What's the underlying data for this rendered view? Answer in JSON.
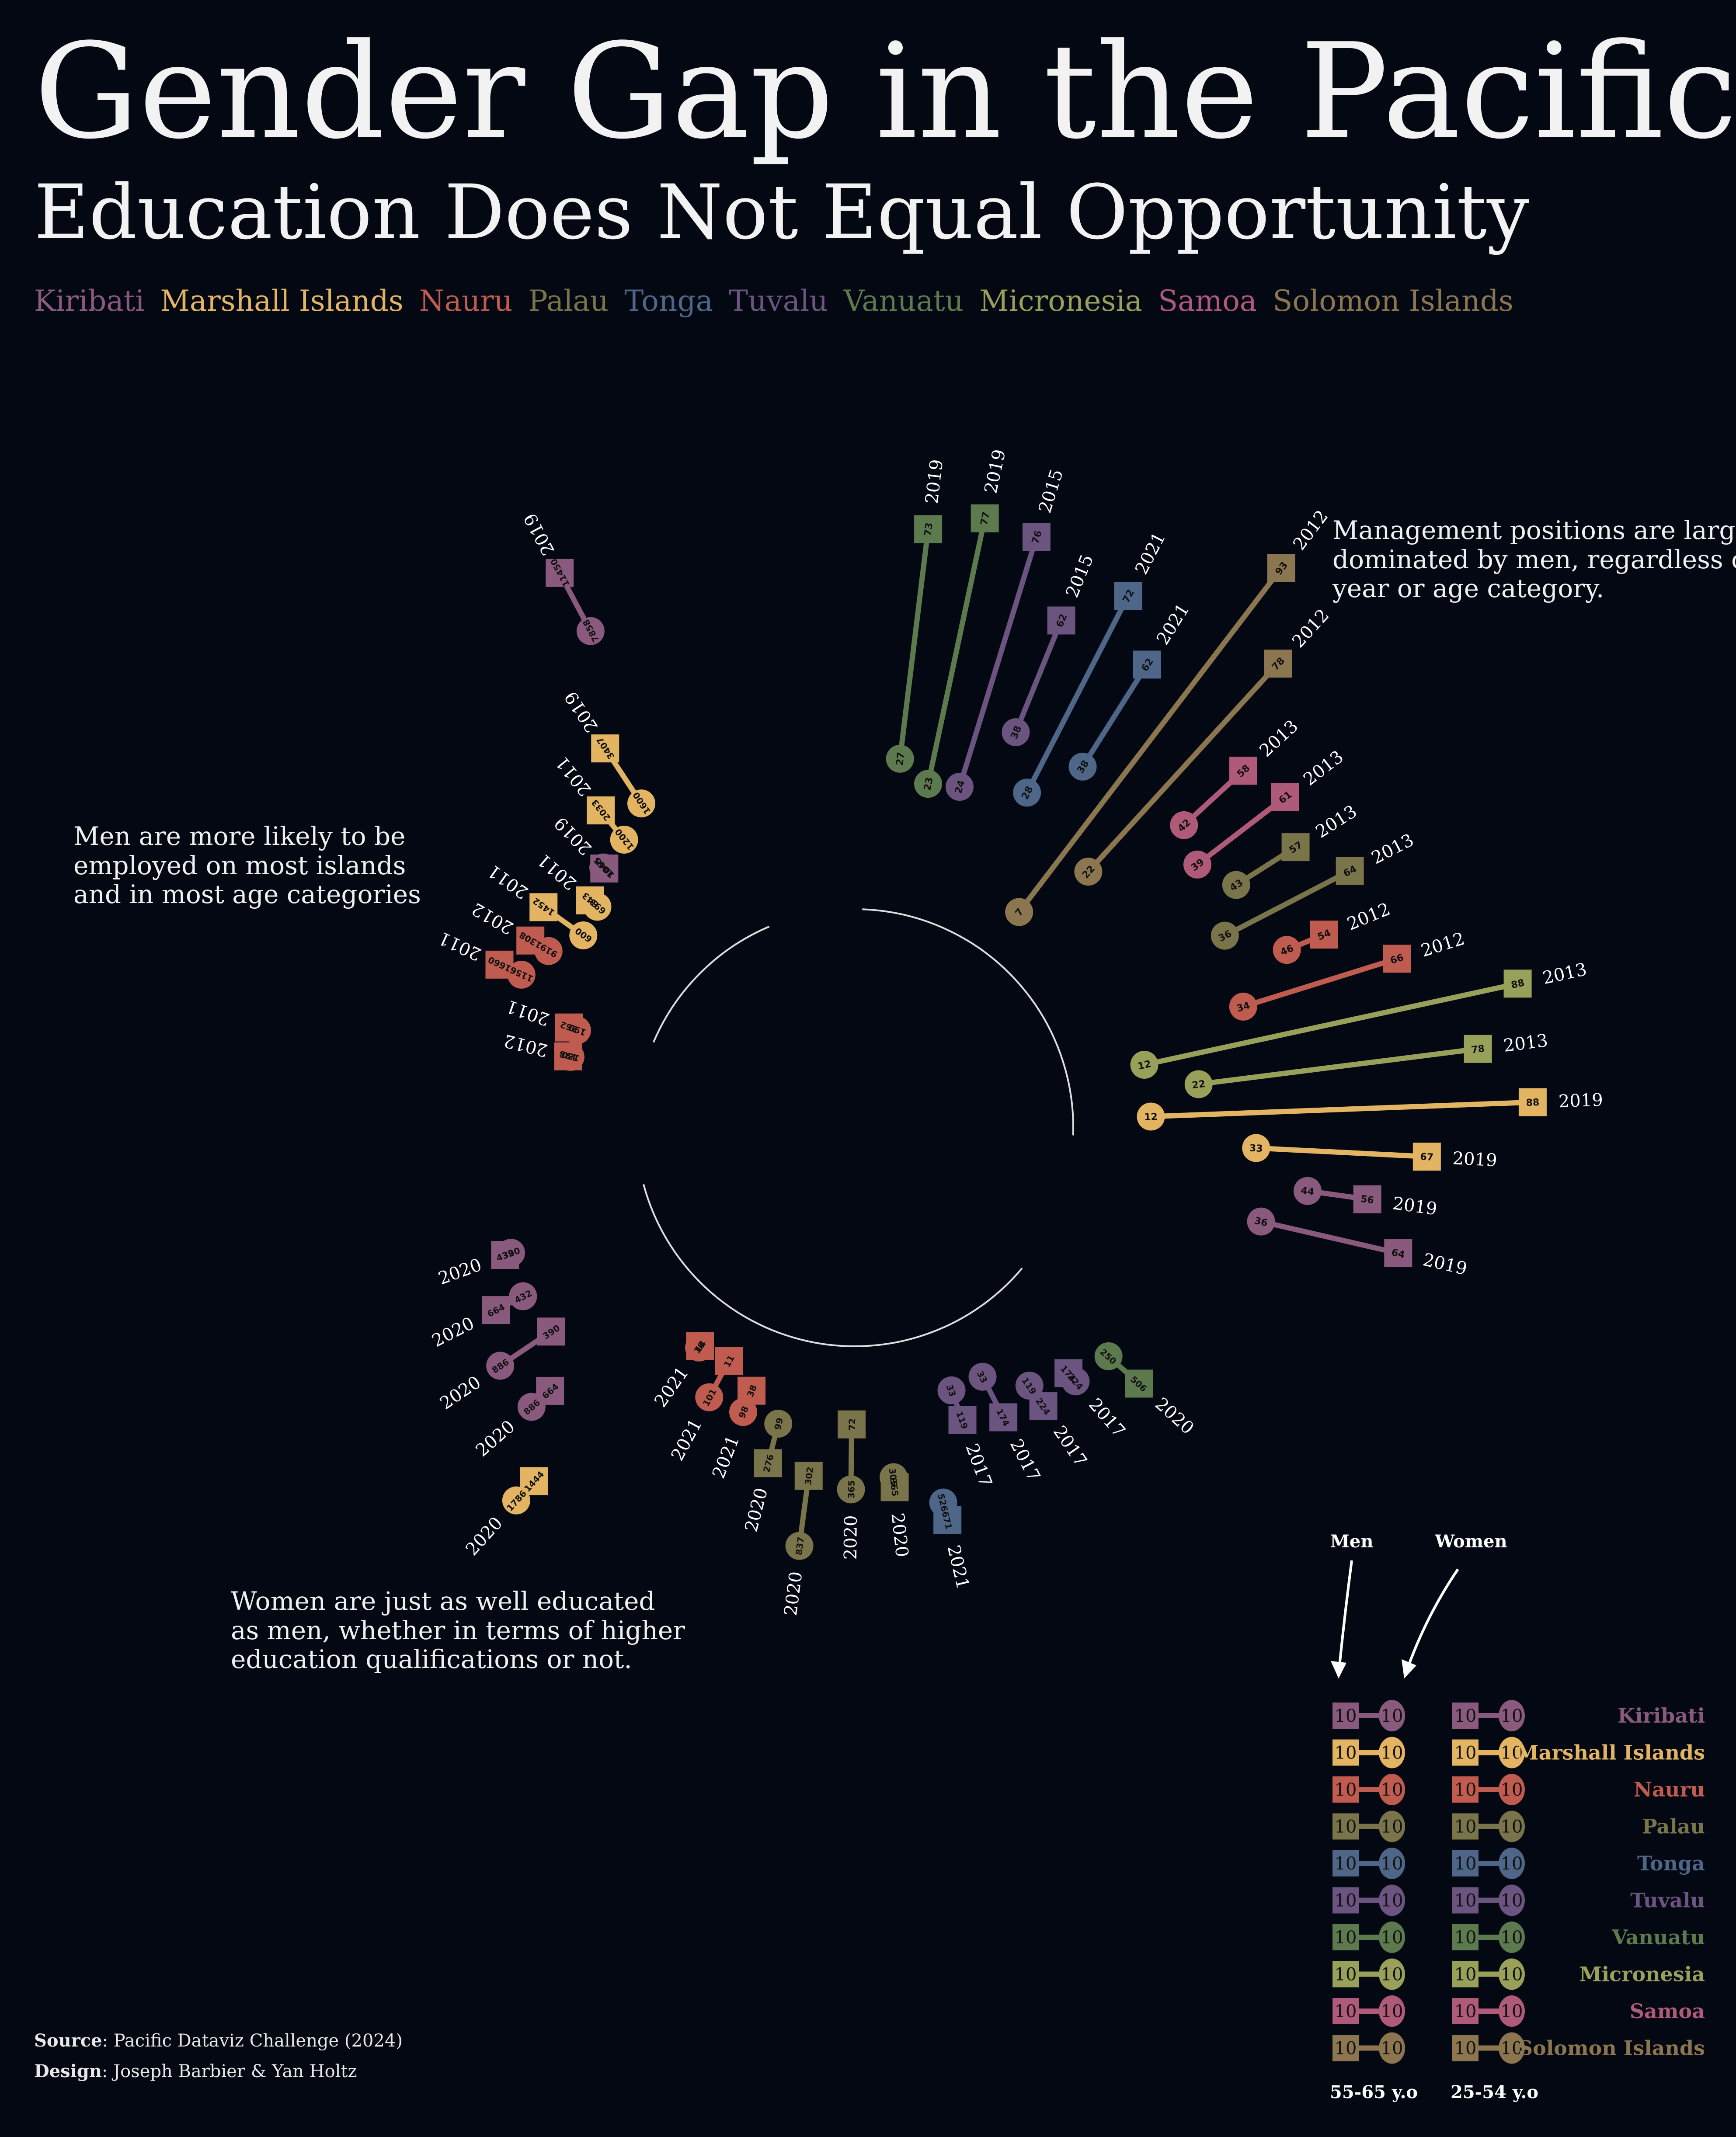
{
  "header": {
    "title": "Gender Gap in the Pacific",
    "subtitle": "Education Does Not Equal Opportunity"
  },
  "colors": {
    "Kiribati": "#8a5a7e",
    "Marshall Islands": "#e3b562",
    "Nauru": "#bf5b4f",
    "Palau": "#7a744b",
    "Tonga": "#4e6687",
    "Tuvalu": "#6b547f",
    "Vanuatu": "#5d7a4f",
    "Micronesia": "#99a05a",
    "Samoa": "#b05a7a",
    "Solomon Islands": "#8c7650"
  },
  "legend": [
    "Kiribati",
    "Marshall Islands",
    "Nauru",
    "Palau",
    "Tonga",
    "Tuvalu",
    "Vanuatu",
    "Micronesia",
    "Samoa",
    "Solomon Islands"
  ],
  "notes": {
    "management": [
      "Management positions are largely",
      "dominated by men, regardless of",
      "year or age category."
    ],
    "employment": [
      "Men are more likely to be",
      "employed on most islands",
      "and in most age categories"
    ],
    "education": [
      "Women are just as well educated",
      "as men, whether in terms of higher",
      "education qualifications or not."
    ]
  },
  "credits": {
    "source_label": "Source",
    "source": ": Pacific Dataviz Challenge (2024)",
    "design_label": "Design",
    "design": ": Joseph Barbier & Yan Holtz"
  },
  "key": {
    "men": "Men",
    "women": "Women",
    "value": "10",
    "col1": "55-65 y.o",
    "col2": "25-54 y.o"
  },
  "chart_data": [
    {
      "type": "dumbbell-radial",
      "section": "management",
      "marker_men": "square",
      "marker_women": "circle",
      "points": [
        {
          "country": "Vanuatu",
          "year": "2019",
          "men": 73,
          "women": 27
        },
        {
          "country": "Vanuatu",
          "year": "2019",
          "men": 77,
          "women": 23
        },
        {
          "country": "Tuvalu",
          "year": "2015",
          "men": 76,
          "women": 24
        },
        {
          "country": "Tuvalu",
          "year": "2015",
          "men": 62,
          "women": 38
        },
        {
          "country": "Tonga",
          "year": "2021",
          "men": 72,
          "women": 28
        },
        {
          "country": "Tonga",
          "year": "2021",
          "men": 62,
          "women": 38
        },
        {
          "country": "Solomon Islands",
          "year": "2012",
          "men": 93,
          "women": 7
        },
        {
          "country": "Solomon Islands",
          "year": "2012",
          "men": 78,
          "women": 22
        },
        {
          "country": "Samoa",
          "year": "2013",
          "men": 58,
          "women": 42
        },
        {
          "country": "Samoa",
          "year": "2013",
          "men": 61,
          "women": 39
        },
        {
          "country": "Palau",
          "year": "2013",
          "men": 57,
          "women": 43
        },
        {
          "country": "Palau",
          "year": "2013",
          "men": 64,
          "women": 36
        },
        {
          "country": "Nauru",
          "year": "2012",
          "men": 54,
          "women": 46
        },
        {
          "country": "Nauru",
          "year": "2012",
          "men": 66,
          "women": 34
        },
        {
          "country": "Micronesia",
          "year": "2013",
          "men": 88,
          "women": 12
        },
        {
          "country": "Micronesia",
          "year": "2013",
          "men": 78,
          "women": 22
        },
        {
          "country": "Marshall Islands",
          "year": "2019",
          "men": 88,
          "women": 12
        },
        {
          "country": "Marshall Islands",
          "year": "2019",
          "men": 67,
          "women": 33
        },
        {
          "country": "Kiribati",
          "year": "2019",
          "men": 56,
          "women": 44
        },
        {
          "country": "Kiribati",
          "year": "2019",
          "men": 64,
          "women": 36
        }
      ]
    },
    {
      "type": "dumbbell-radial",
      "section": "employment",
      "points": [
        {
          "country": "Kiribati",
          "year": "2019",
          "men": 11450,
          "women": 7858
        },
        {
          "country": "Marshall Islands",
          "year": "2019",
          "men": 3407,
          "women": 1600
        },
        {
          "country": "Marshall Islands",
          "year": "2011",
          "men": 2033,
          "women": 1200
        },
        {
          "country": "Kiribati",
          "year": "2019",
          "men": 1040,
          "women": 1065
        },
        {
          "country": "Marshall Islands",
          "year": "2011",
          "men": 843,
          "women": 693
        },
        {
          "country": "Marshall Islands",
          "year": "2011",
          "men": 1452,
          "women": 600
        },
        {
          "country": "Nauru",
          "year": "2012",
          "men": 1308,
          "women": 919
        },
        {
          "country": "Nauru",
          "year": "2011",
          "men": 1660,
          "women": 1156
        },
        {
          "country": "Nauru",
          "year": "2011",
          "men": 262,
          "women": 190
        },
        {
          "country": "Nauru",
          "year": "2012",
          "men": 198,
          "women": 180
        }
      ]
    },
    {
      "type": "dumbbell-radial",
      "section": "education",
      "points": [
        {
          "country": "Kiribati",
          "year": "2020",
          "men": 432,
          "women": 390
        },
        {
          "country": "Kiribati",
          "year": "2020",
          "men": 664,
          "women": 432
        },
        {
          "country": "Kiribati",
          "year": "2020",
          "men": 390,
          "women": 886
        },
        {
          "country": "Kiribati",
          "year": "2020",
          "men": 664,
          "women": 886
        },
        {
          "country": "Marshall Islands",
          "year": "2020",
          "men": 1444,
          "women": 1786
        },
        {
          "country": "Nauru",
          "year": "2021",
          "men": 14,
          "women": 16
        },
        {
          "country": "Nauru",
          "year": "2021",
          "men": 11,
          "women": 101
        },
        {
          "country": "Nauru",
          "year": "2021",
          "men": 38,
          "women": 98
        },
        {
          "country": "Palau",
          "year": "2020",
          "men": 276,
          "women": 99
        },
        {
          "country": "Palau",
          "year": "2020",
          "men": 302,
          "women": 837
        },
        {
          "country": "Palau",
          "year": "2020",
          "men": 72,
          "women": 365
        },
        {
          "country": "Palau",
          "year": "2020",
          "men": 365,
          "women": 305
        },
        {
          "country": "Tonga",
          "year": "2021",
          "men": 671,
          "women": 526
        },
        {
          "country": "Tuvalu",
          "year": "2017",
          "men": 119,
          "women": 33
        },
        {
          "country": "Tuvalu",
          "year": "2017",
          "men": 174,
          "women": 33
        },
        {
          "country": "Tuvalu",
          "year": "2017",
          "men": 224,
          "women": 119
        },
        {
          "country": "Tuvalu",
          "year": "2017",
          "men": 174,
          "women": 224
        },
        {
          "country": "Vanuatu",
          "year": "2020",
          "men": 506,
          "women": 250
        }
      ]
    }
  ]
}
